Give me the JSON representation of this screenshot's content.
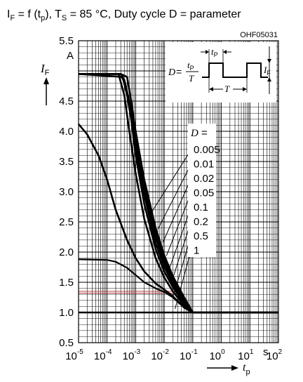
{
  "title": {
    "i": "I",
    "f_sub": "F",
    "eq": " = f (t",
    "p_sub": "p",
    "mid": "), T",
    "s_sub": "S",
    "rest": " = 85 °C, Duty cycle D = parameter"
  },
  "code": "OHF05031",
  "colors": {
    "ink": "#000000",
    "reference": "#b04040"
  },
  "chart_data": {
    "type": "line",
    "x_scale": "log",
    "xlim": [
      1e-05,
      100
    ],
    "ylim": [
      0.5,
      5.5
    ],
    "y_unit": "A",
    "x_unit": "s",
    "ylabel": {
      "main": "I",
      "sub": "F"
    },
    "xlabel": {
      "main": "t",
      "sub": "p"
    },
    "x_ticks": [
      {
        "value": 1e-05,
        "base": "10",
        "exp": "-5"
      },
      {
        "value": 0.0001,
        "base": "10",
        "exp": "-4"
      },
      {
        "value": 0.001,
        "base": "10",
        "exp": "-3"
      },
      {
        "value": 0.01,
        "base": "10",
        "exp": "-2"
      },
      {
        "value": 0.1,
        "base": "10",
        "exp": "-1"
      },
      {
        "value": 1,
        "base": "10",
        "exp": "0"
      },
      {
        "value": 10,
        "base": "10",
        "exp": "1"
      },
      {
        "value": 100,
        "base": "10",
        "exp": "2"
      }
    ],
    "y_ticks": [
      "5.5",
      "4.5",
      "4.0",
      "3.5",
      "3.0",
      "2.5",
      "2.0",
      "1.5",
      "1.0",
      "0.5"
    ],
    "legend_title": "D =",
    "series": [
      {
        "name": "0.005",
        "points": [
          [
            1e-05,
            4.95
          ],
          [
            0.0003,
            4.95
          ],
          [
            0.0005,
            4.9
          ],
          [
            0.0007,
            4.5
          ],
          [
            0.001,
            4.0
          ],
          [
            0.002,
            3.2
          ],
          [
            0.005,
            2.4
          ],
          [
            0.01,
            1.95
          ],
          [
            0.02,
            1.6
          ],
          [
            0.05,
            1.25
          ],
          [
            0.1,
            1.0
          ],
          [
            100,
            1.0
          ]
        ]
      },
      {
        "name": "0.01",
        "points": [
          [
            1e-05,
            4.95
          ],
          [
            0.0003,
            4.95
          ],
          [
            0.0004,
            4.85
          ],
          [
            0.0006,
            4.5
          ],
          [
            0.001,
            3.95
          ],
          [
            0.002,
            3.15
          ],
          [
            0.005,
            2.35
          ],
          [
            0.01,
            1.9
          ],
          [
            0.02,
            1.57
          ],
          [
            0.05,
            1.22
          ],
          [
            0.1,
            1.0
          ],
          [
            100,
            1.0
          ]
        ]
      },
      {
        "name": "0.02",
        "points": [
          [
            1e-05,
            4.95
          ],
          [
            0.0003,
            4.95
          ],
          [
            0.00045,
            4.75
          ],
          [
            0.0007,
            4.3
          ],
          [
            0.001,
            3.85
          ],
          [
            0.002,
            3.05
          ],
          [
            0.005,
            2.25
          ],
          [
            0.01,
            1.83
          ],
          [
            0.02,
            1.52
          ],
          [
            0.05,
            1.2
          ],
          [
            0.1,
            1.0
          ],
          [
            100,
            1.0
          ]
        ]
      },
      {
        "name": "0.05",
        "points": [
          [
            1e-05,
            4.95
          ],
          [
            0.0003,
            4.95
          ],
          [
            0.0004,
            4.85
          ],
          [
            0.0006,
            4.4
          ],
          [
            0.001,
            3.75
          ],
          [
            0.002,
            2.95
          ],
          [
            0.005,
            2.15
          ],
          [
            0.01,
            1.76
          ],
          [
            0.02,
            1.47
          ],
          [
            0.05,
            1.17
          ],
          [
            0.1,
            1.0
          ],
          [
            100,
            1.0
          ]
        ]
      },
      {
        "name": "0.1",
        "points": [
          [
            1e-05,
            4.95
          ],
          [
            0.00035,
            4.9
          ],
          [
            0.0005,
            4.6
          ],
          [
            0.0007,
            4.2
          ],
          [
            0.001,
            3.6
          ],
          [
            0.002,
            2.8
          ],
          [
            0.005,
            2.05
          ],
          [
            0.01,
            1.68
          ],
          [
            0.02,
            1.42
          ],
          [
            0.05,
            1.14
          ],
          [
            0.1,
            1.0
          ],
          [
            100,
            1.0
          ]
        ]
      },
      {
        "name": "0.2",
        "points": [
          [
            1e-05,
            4.95
          ],
          [
            0.00025,
            4.95
          ],
          [
            0.0004,
            4.6
          ],
          [
            0.0006,
            4.0
          ],
          [
            0.001,
            3.3
          ],
          [
            0.002,
            2.55
          ],
          [
            0.005,
            1.9
          ],
          [
            0.01,
            1.58
          ],
          [
            0.02,
            1.35
          ],
          [
            0.05,
            1.11
          ],
          [
            0.1,
            1.0
          ],
          [
            100,
            1.0
          ]
        ]
      },
      {
        "name": "0.5",
        "points": [
          [
            1e-05,
            4.12
          ],
          [
            2e-05,
            3.95
          ],
          [
            5e-05,
            3.6
          ],
          [
            0.0001,
            3.2
          ],
          [
            0.0002,
            2.7
          ],
          [
            0.0005,
            2.2
          ],
          [
            0.001,
            1.9
          ],
          [
            0.002,
            1.68
          ],
          [
            0.005,
            1.48
          ],
          [
            0.01,
            1.38
          ],
          [
            0.02,
            1.27
          ],
          [
            0.05,
            1.08
          ],
          [
            0.1,
            1.0
          ],
          [
            100,
            1.0
          ]
        ]
      },
      {
        "name": "1",
        "points": [
          [
            1e-05,
            1.0
          ],
          [
            100,
            1.0
          ]
        ]
      }
    ],
    "extra_curves": [
      {
        "points": [
          [
            1e-05,
            1.88
          ],
          [
            0.0001,
            1.87
          ],
          [
            0.0002,
            1.84
          ],
          [
            0.0005,
            1.74
          ],
          [
            0.001,
            1.62
          ],
          [
            0.002,
            1.5
          ],
          [
            0.005,
            1.4
          ],
          [
            0.01,
            1.34
          ],
          [
            0.02,
            1.25
          ],
          [
            0.05,
            1.08
          ],
          [
            0.1,
            1.0
          ]
        ]
      }
    ],
    "reference_lines": [
      1.35,
      1.32
    ],
    "grid": true
  },
  "inset": {
    "eq_lhs": "D",
    "eq_num": "t",
    "eq_num_sub": "P",
    "eq_den": "T",
    "tp": "t",
    "tp_sub": "P",
    "t_label": "T",
    "if": "I",
    "if_sub": "F"
  }
}
